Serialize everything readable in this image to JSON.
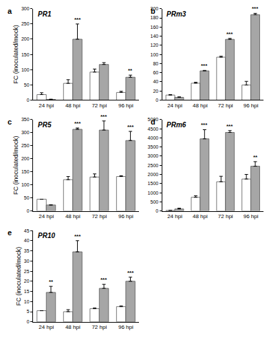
{
  "chart_data": [
    {
      "type": "bar",
      "panel": "a",
      "title": "PR1",
      "y_label": "FC (inoculated/mock)",
      "categories": [
        "24 hpi",
        "48 hpi",
        "72 hpi",
        "96 hpi"
      ],
      "series": [
        {
          "color": "#ffffff",
          "values": [
            18,
            55,
            92,
            25
          ],
          "errors": [
            6,
            12,
            10,
            4
          ]
        },
        {
          "color": "#a6a6a6",
          "values": [
            2,
            200,
            117,
            75
          ],
          "errors": [
            1,
            50,
            6,
            7
          ]
        }
      ],
      "significance": [
        null,
        "***",
        null,
        "**"
      ],
      "ylim": [
        0,
        300
      ],
      "yticks": [
        0,
        50,
        100,
        150,
        200,
        250,
        300
      ]
    },
    {
      "type": "bar",
      "panel": "b",
      "title": "PRm3",
      "categories": [
        "24 hpi",
        "48 hpi",
        "72 hpi",
        "96 hpi"
      ],
      "series": [
        {
          "color": "#ffffff",
          "values": [
            11,
            37,
            94,
            33
          ],
          "errors": [
            1,
            2,
            2,
            8
          ]
        },
        {
          "color": "#a6a6a6",
          "values": [
            6,
            64,
            133,
            187
          ],
          "errors": [
            1,
            1,
            2,
            3
          ]
        }
      ],
      "significance": [
        null,
        "***",
        "***",
        "***"
      ],
      "ylim": [
        0,
        200
      ],
      "yticks": [
        0,
        20,
        40,
        60,
        80,
        100,
        120,
        140,
        160,
        180,
        200
      ]
    },
    {
      "type": "bar",
      "panel": "c",
      "title": "PR5",
      "y_label": "FC (inoculated/mock)",
      "categories": [
        "24 hpi",
        "48 hpi",
        "72 hpi",
        "96 hpi"
      ],
      "series": [
        {
          "color": "#ffffff",
          "values": [
            45,
            120,
            130,
            132
          ],
          "errors": [
            0,
            12,
            12,
            3
          ]
        },
        {
          "color": "#a6a6a6",
          "values": [
            23,
            313,
            310,
            270
          ],
          "errors": [
            0,
            5,
            35,
            35
          ]
        }
      ],
      "significance": [
        null,
        "***",
        "***",
        "***"
      ],
      "ylim": [
        0,
        350
      ],
      "yticks": [
        0,
        50,
        100,
        150,
        200,
        250,
        300,
        350
      ]
    },
    {
      "type": "bar",
      "panel": "d",
      "title": "PRm6",
      "categories": [
        "24 hpi",
        "48 hpi",
        "72 hpi",
        "96 hpi"
      ],
      "series": [
        {
          "color": "#ffffff",
          "values": [
            30,
            750,
            1600,
            1750
          ],
          "errors": [
            10,
            80,
            300,
            250
          ]
        },
        {
          "color": "#a6a6a6",
          "values": [
            110,
            3950,
            4300,
            2450
          ],
          "errors": [
            40,
            500,
            100,
            250
          ]
        }
      ],
      "significance": [
        null,
        "***",
        "***",
        "**"
      ],
      "ylim": [
        0,
        5000
      ],
      "yticks": [
        0,
        500,
        1000,
        1500,
        2000,
        2500,
        3000,
        3500,
        4000,
        4500,
        5000
      ]
    },
    {
      "type": "bar",
      "panel": "e",
      "title": "PR10",
      "y_label": "FC (inoculated/mock)",
      "categories": [
        "24 hpi",
        "48 hpi",
        "72 hpi",
        "96 hpi"
      ],
      "series": [
        {
          "color": "#ffffff",
          "values": [
            5.5,
            5,
            6.5,
            7.5
          ],
          "errors": [
            0,
            1,
            0.3,
            0.3
          ]
        },
        {
          "color": "#a6a6a6",
          "values": [
            14.5,
            34.5,
            16.5,
            20
          ],
          "errors": [
            3,
            5.5,
            2,
            2
          ]
        }
      ],
      "significance": [
        "**",
        "***",
        "***",
        "***"
      ],
      "ylim": [
        0,
        45
      ],
      "yticks": [
        0,
        5,
        10,
        15,
        20,
        25,
        30,
        35,
        40,
        45
      ]
    }
  ]
}
